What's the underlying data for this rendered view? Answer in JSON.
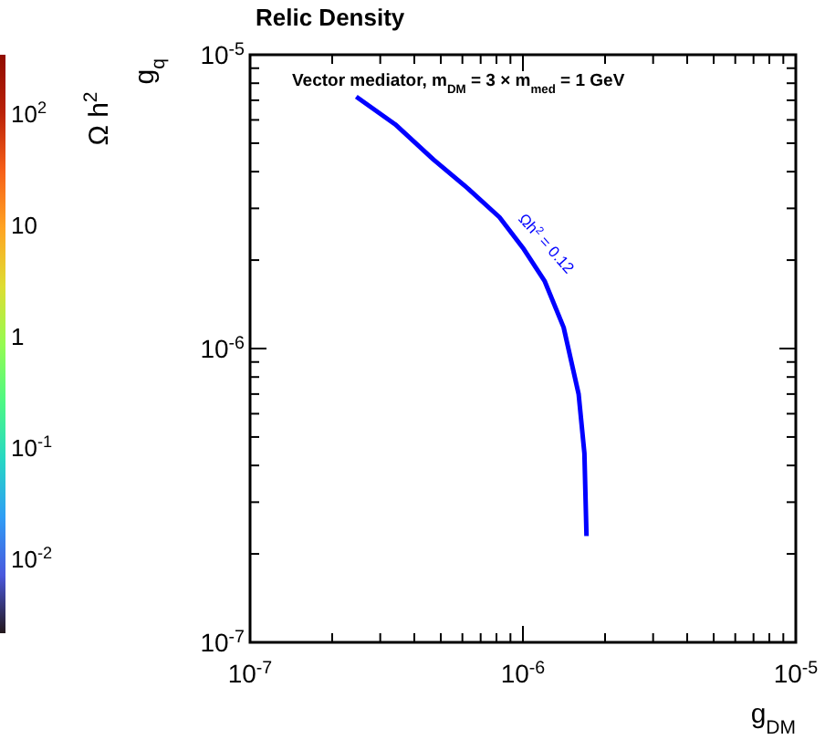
{
  "chart_data": {
    "type": "line",
    "title": "Relic Density",
    "xlabel": "g$_{DM}$",
    "ylabel": "g$_{q}$",
    "clabel": "Ω h$^{2}$",
    "log": "xy",
    "xlim": [
      1e-07,
      1e-05
    ],
    "ylim": [
      1e-07,
      1e-05
    ],
    "xticks": [
      {
        "value": 1e-07,
        "label": "10$^{-7}$"
      },
      {
        "value": 2e-07,
        "label": null
      },
      {
        "value": 3e-07,
        "label": null
      },
      {
        "value": 4e-07,
        "label": null
      },
      {
        "value": 5e-07,
        "label": null
      },
      {
        "value": 6e-07,
        "label": null
      },
      {
        "value": 7e-07,
        "label": null
      },
      {
        "value": 8e-07,
        "label": null
      },
      {
        "value": 9e-07,
        "label": null
      },
      {
        "value": 1e-06,
        "label": "10$^{-6}$"
      },
      {
        "value": 2e-06,
        "label": null
      },
      {
        "value": 3e-06,
        "label": null
      },
      {
        "value": 4e-06,
        "label": null
      },
      {
        "value": 5e-06,
        "label": null
      },
      {
        "value": 6e-06,
        "label": null
      },
      {
        "value": 7e-06,
        "label": null
      },
      {
        "value": 8e-06,
        "label": null
      },
      {
        "value": 9e-06,
        "label": null
      },
      {
        "value": 1e-05,
        "label": "10$^{-5}$"
      }
    ],
    "yticks": [
      {
        "value": 1e-07,
        "label": "10$^{-7}$"
      },
      {
        "value": 2e-07,
        "label": null
      },
      {
        "value": 3e-07,
        "label": null
      },
      {
        "value": 4e-07,
        "label": null
      },
      {
        "value": 5e-07,
        "label": null
      },
      {
        "value": 6e-07,
        "label": null
      },
      {
        "value": 7e-07,
        "label": null
      },
      {
        "value": 8e-07,
        "label": null
      },
      {
        "value": 9e-07,
        "label": null
      },
      {
        "value": 1e-06,
        "label": "10$^{-6}$"
      },
      {
        "value": 2e-06,
        "label": null
      },
      {
        "value": 3e-06,
        "label": null
      },
      {
        "value": 4e-06,
        "label": null
      },
      {
        "value": 5e-06,
        "label": null
      },
      {
        "value": 6e-06,
        "label": null
      },
      {
        "value": 7e-06,
        "label": null
      },
      {
        "value": 8e-06,
        "label": null
      },
      {
        "value": 9e-06,
        "label": null
      },
      {
        "value": 1e-05,
        "label": "10$^{-5}$"
      }
    ],
    "series": [
      {
        "color": "#0000ff",
        "x": [
          2.45e-07,
          3.4e-07,
          4.7e-07,
          6.3e-07,
          8.2e-07,
          1e-06,
          1.2e-06,
          1.41e-06,
          1.6e-06,
          1.68e-06,
          1.71e-06
        ],
        "values": [
          7.2e-06,
          5.8e-06,
          4.4e-06,
          3.5e-06,
          2.8e-06,
          2.2e-06,
          1.7e-06,
          1.18e-06,
          7e-07,
          4.4e-07,
          2.3e-07
        ]
      }
    ],
    "annotations": [
      "Vector mediator, m$_{DM}$ = 3 × m$_{med}$ = 1 GeV",
      {
        "text": "Ωh$^{2}$ = 0.12",
        "x": 9e-07,
        "y": 2.6e-06
      },
      "10$^{2}$",
      "10",
      "1",
      "10$^{-1}$",
      "10$^{-2}$"
    ]
  }
}
